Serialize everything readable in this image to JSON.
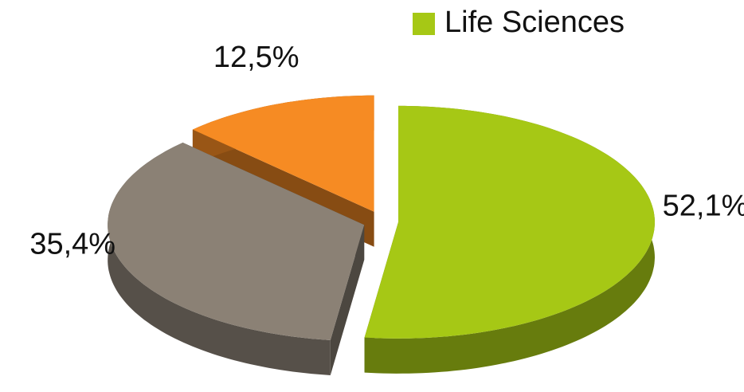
{
  "chart_data": {
    "type": "pie",
    "categories": [
      "Life Sciences",
      null,
      null
    ],
    "values": [
      52.1,
      35.4,
      12.5
    ],
    "value_labels": [
      "52,1%",
      "35,4%",
      "12,5%"
    ],
    "colors": [
      "#a6c815",
      "#8b8175",
      "#f68b23"
    ],
    "legend": "top-right"
  }
}
